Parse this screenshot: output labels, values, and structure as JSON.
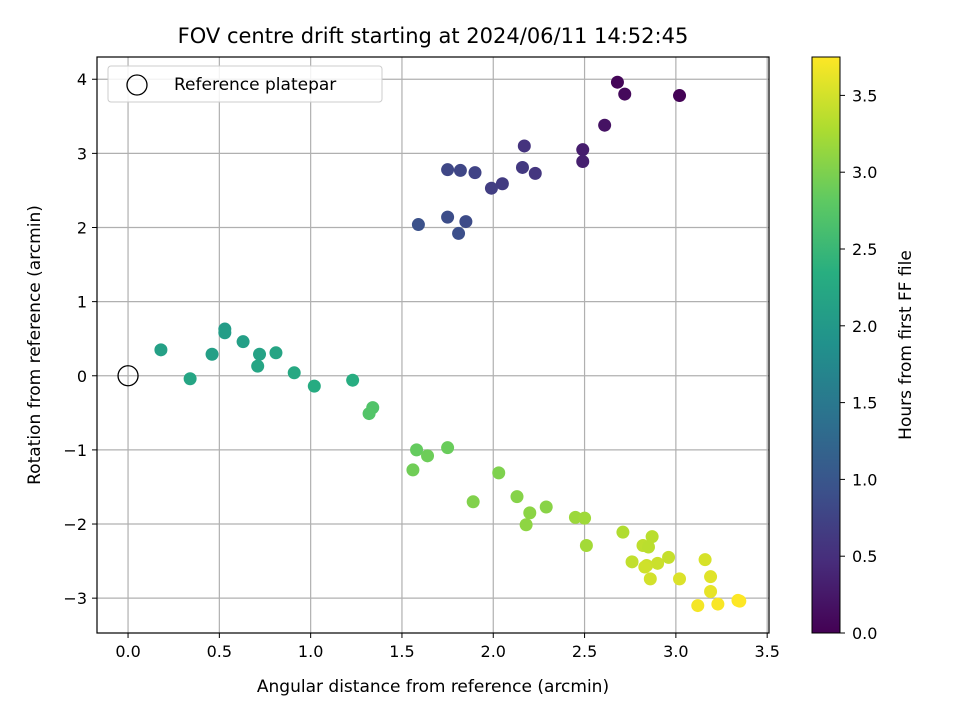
{
  "chart_data": {
    "type": "scatter",
    "title": "FOV centre drift starting at 2024/06/11 14:52:45",
    "xlabel": "Angular distance from reference (arcmin)",
    "ylabel": "Rotation from reference (arcmin)",
    "xlim": [
      -0.17,
      3.51
    ],
    "ylim": [
      -3.47,
      4.3
    ],
    "xticks": [
      0.0,
      0.5,
      1.0,
      1.5,
      2.0,
      2.5,
      3.0,
      3.5
    ],
    "xtick_labels": [
      "0.0",
      "0.5",
      "1.0",
      "1.5",
      "2.0",
      "2.5",
      "3.0",
      "3.5"
    ],
    "yticks": [
      -3,
      -2,
      -1,
      0,
      1,
      2,
      3,
      4
    ],
    "ytick_labels": [
      "−3",
      "−2",
      "−1",
      "0",
      "1",
      "2",
      "3",
      "4"
    ],
    "grid": true,
    "legend": {
      "placement": "upper-left",
      "entries": [
        "Reference platepar"
      ]
    },
    "reference_point": {
      "label": "Reference platepar",
      "x": 0.0,
      "y": 0.0
    },
    "colorbar": {
      "label": "Hours from first FF file",
      "colormap": "viridis",
      "range": [
        0.0,
        3.75
      ],
      "ticks": [
        0.0,
        0.5,
        1.0,
        1.5,
        2.0,
        2.5,
        3.0,
        3.5
      ],
      "tick_labels": [
        "0.0",
        "0.5",
        "1.0",
        "1.5",
        "2.0",
        "2.5",
        "3.0",
        "3.5"
      ]
    },
    "points": [
      {
        "x": 2.68,
        "y": 3.96,
        "hours": 0.05
      },
      {
        "x": 2.72,
        "y": 3.8,
        "hours": 0.08
      },
      {
        "x": 3.02,
        "y": 3.78,
        "hours": 0.02
      },
      {
        "x": 2.61,
        "y": 3.38,
        "hours": 0.18
      },
      {
        "x": 2.49,
        "y": 3.05,
        "hours": 0.3
      },
      {
        "x": 2.49,
        "y": 2.89,
        "hours": 0.33
      },
      {
        "x": 2.17,
        "y": 3.1,
        "hours": 0.55
      },
      {
        "x": 2.16,
        "y": 2.81,
        "hours": 0.62
      },
      {
        "x": 2.23,
        "y": 2.73,
        "hours": 0.58
      },
      {
        "x": 2.05,
        "y": 2.59,
        "hours": 0.65
      },
      {
        "x": 1.99,
        "y": 2.53,
        "hours": 0.68
      },
      {
        "x": 1.9,
        "y": 2.74,
        "hours": 0.75
      },
      {
        "x": 1.82,
        "y": 2.77,
        "hours": 0.78
      },
      {
        "x": 1.75,
        "y": 2.78,
        "hours": 0.8
      },
      {
        "x": 1.85,
        "y": 2.08,
        "hours": 0.85
      },
      {
        "x": 1.75,
        "y": 2.14,
        "hours": 0.88
      },
      {
        "x": 1.81,
        "y": 1.92,
        "hours": 0.9
      },
      {
        "x": 1.59,
        "y": 2.04,
        "hours": 0.92
      },
      {
        "x": 0.53,
        "y": 0.63,
        "hours": 2.05
      },
      {
        "x": 0.53,
        "y": 0.58,
        "hours": 2.07
      },
      {
        "x": 0.63,
        "y": 0.46,
        "hours": 2.1
      },
      {
        "x": 0.18,
        "y": 0.35,
        "hours": 2.12
      },
      {
        "x": 0.46,
        "y": 0.29,
        "hours": 2.1
      },
      {
        "x": 0.72,
        "y": 0.29,
        "hours": 2.15
      },
      {
        "x": 0.81,
        "y": 0.31,
        "hours": 2.18
      },
      {
        "x": 0.71,
        "y": 0.13,
        "hours": 2.2
      },
      {
        "x": 0.91,
        "y": 0.04,
        "hours": 2.25
      },
      {
        "x": 0.34,
        "y": -0.04,
        "hours": 2.2
      },
      {
        "x": 1.02,
        "y": -0.14,
        "hours": 2.3
      },
      {
        "x": 1.23,
        "y": -0.06,
        "hours": 2.32
      },
      {
        "x": 1.34,
        "y": -0.43,
        "hours": 2.7
      },
      {
        "x": 1.32,
        "y": -0.51,
        "hours": 2.72
      },
      {
        "x": 1.58,
        "y": -1.0,
        "hours": 2.85
      },
      {
        "x": 1.75,
        "y": -0.97,
        "hours": 2.88
      },
      {
        "x": 1.64,
        "y": -1.08,
        "hours": 2.9
      },
      {
        "x": 1.56,
        "y": -1.27,
        "hours": 2.92
      },
      {
        "x": 2.03,
        "y": -1.31,
        "hours": 3.0
      },
      {
        "x": 1.89,
        "y": -1.7,
        "hours": 3.02
      },
      {
        "x": 2.13,
        "y": -1.63,
        "hours": 3.05
      },
      {
        "x": 2.29,
        "y": -1.77,
        "hours": 3.07
      },
      {
        "x": 2.2,
        "y": -1.85,
        "hours": 3.08
      },
      {
        "x": 2.18,
        "y": -2.01,
        "hours": 3.1
      },
      {
        "x": 2.45,
        "y": -1.91,
        "hours": 3.18
      },
      {
        "x": 2.5,
        "y": -1.92,
        "hours": 3.2
      },
      {
        "x": 2.51,
        "y": -2.29,
        "hours": 3.22
      },
      {
        "x": 2.71,
        "y": -2.11,
        "hours": 3.3
      },
      {
        "x": 2.87,
        "y": -2.17,
        "hours": 3.35
      },
      {
        "x": 2.82,
        "y": -2.29,
        "hours": 3.38
      },
      {
        "x": 2.76,
        "y": -2.51,
        "hours": 3.4
      },
      {
        "x": 2.85,
        "y": -2.31,
        "hours": 3.36
      },
      {
        "x": 2.96,
        "y": -2.45,
        "hours": 3.42
      },
      {
        "x": 2.9,
        "y": -2.53,
        "hours": 3.45
      },
      {
        "x": 2.84,
        "y": -2.56,
        "hours": 3.46
      },
      {
        "x": 2.83,
        "y": -2.58,
        "hours": 3.48
      },
      {
        "x": 2.86,
        "y": -2.74,
        "hours": 3.5
      },
      {
        "x": 3.02,
        "y": -2.74,
        "hours": 3.55
      },
      {
        "x": 3.16,
        "y": -2.48,
        "hours": 3.52
      },
      {
        "x": 3.19,
        "y": -2.71,
        "hours": 3.58
      },
      {
        "x": 3.19,
        "y": -2.91,
        "hours": 3.62
      },
      {
        "x": 3.12,
        "y": -3.1,
        "hours": 3.7
      },
      {
        "x": 3.23,
        "y": -3.08,
        "hours": 3.72
      },
      {
        "x": 3.34,
        "y": -3.03,
        "hours": 3.74
      },
      {
        "x": 3.35,
        "y": -3.04,
        "hours": 3.75
      }
    ]
  }
}
